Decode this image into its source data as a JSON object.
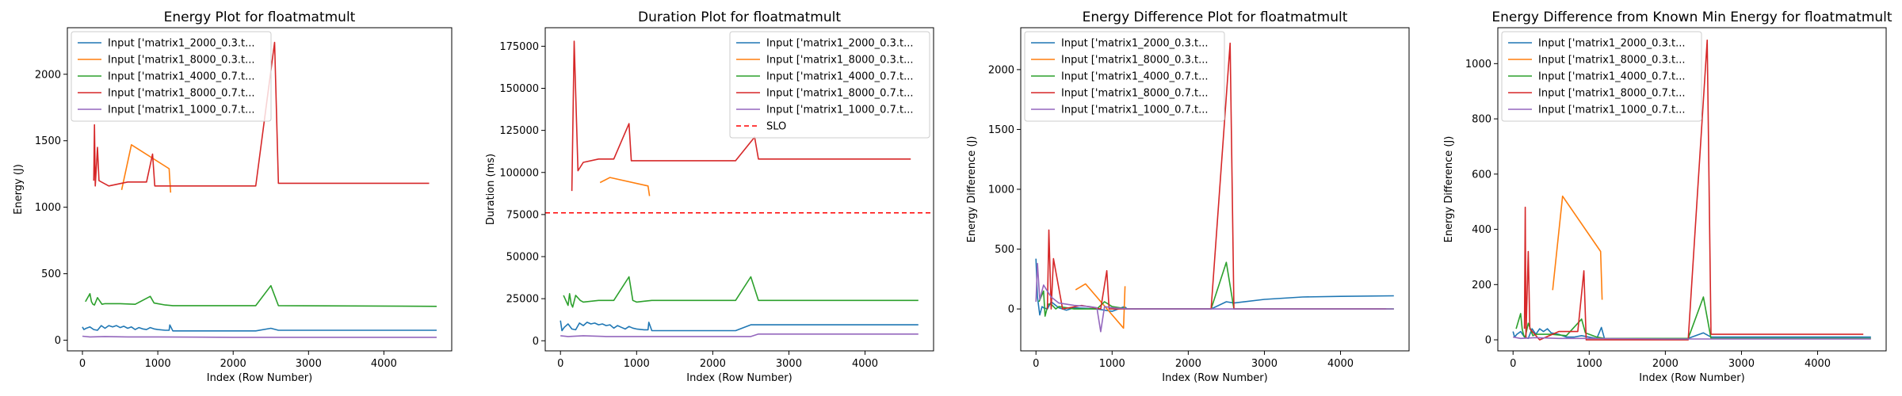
{
  "chart_data": [
    {
      "type": "line",
      "title": "Energy Plot for floatmatmult",
      "xlabel": "Index (Row Number)",
      "ylabel": "Energy (J)",
      "xlim": [
        -200,
        4900
      ],
      "ylim": [
        -80,
        2350
      ],
      "xticks": [
        0,
        1000,
        2000,
        3000,
        4000
      ],
      "yticks": [
        0,
        500,
        1000,
        1500,
        2000
      ],
      "legend": "upper-left",
      "series": [
        {
          "name": "Input ['matrix1_2000_0.3.t...",
          "color": "#1f77b4",
          "x": [
            0,
            20,
            50,
            100,
            150,
            200,
            250,
            300,
            350,
            400,
            450,
            500,
            550,
            600,
            650,
            700,
            750,
            800,
            850,
            900,
            950,
            1000,
            1100,
            1150,
            1160,
            1200,
            2000,
            2300,
            2500,
            2600,
            4700
          ],
          "y": [
            100,
            80,
            90,
            100,
            80,
            75,
            110,
            90,
            110,
            100,
            110,
            95,
            105,
            90,
            100,
            80,
            95,
            85,
            80,
            95,
            85,
            80,
            75,
            75,
            115,
            70,
            70,
            70,
            90,
            75,
            75
          ]
        },
        {
          "name": "Input ['matrix1_8000_0.3.t...",
          "color": "#ff7f0e",
          "x": [
            520,
            650,
            1150,
            1170
          ],
          "y": [
            1130,
            1470,
            1290,
            1110
          ]
        },
        {
          "name": "Input ['matrix1_4000_0.7.t...",
          "color": "#2ca02c",
          "x": [
            40,
            100,
            120,
            140,
            160,
            200,
            260,
            300,
            500,
            700,
            900,
            950,
            1000,
            1100,
            1200,
            2000,
            2300,
            2500,
            2600,
            4700
          ],
          "y": [
            290,
            350,
            290,
            270,
            265,
            320,
            270,
            275,
            275,
            270,
            330,
            280,
            275,
            265,
            260,
            260,
            260,
            410,
            260,
            255
          ]
        },
        {
          "name": "Input ['matrix1_8000_0.7.t...",
          "color": "#d62728",
          "x": [
            150,
            160,
            170,
            200,
            220,
            350,
            600,
            850,
            930,
            960,
            2300,
            2550,
            2600,
            4600
          ],
          "y": [
            1200,
            1620,
            1160,
            1450,
            1200,
            1160,
            1190,
            1190,
            1400,
            1160,
            1160,
            2240,
            1180,
            1180
          ]
        },
        {
          "name": "Input ['matrix1_1000_0.7.t...",
          "color": "#9467bd",
          "x": [
            0,
            100,
            300,
            600,
            1000,
            2000,
            3000,
            4700
          ],
          "y": [
            30,
            25,
            28,
            25,
            25,
            22,
            22,
            22
          ]
        }
      ]
    },
    {
      "type": "line",
      "title": "Duration Plot for floatmatmult",
      "xlabel": "Index (Row Number)",
      "ylabel": "Duration (ms)",
      "xlim": [
        -200,
        4900
      ],
      "ylim": [
        -6000,
        186000
      ],
      "xticks": [
        0,
        1000,
        2000,
        3000,
        4000
      ],
      "yticks": [
        0,
        25000,
        50000,
        75000,
        100000,
        125000,
        150000,
        175000
      ],
      "legend": "upper-right",
      "slo": {
        "label": "SLO",
        "value": 76000,
        "color": "#ff0000"
      },
      "series": [
        {
          "name": "Input ['matrix1_2000_0.3.t...",
          "color": "#1f77b4",
          "x": [
            0,
            20,
            50,
            100,
            150,
            200,
            250,
            300,
            350,
            400,
            450,
            500,
            550,
            600,
            650,
            700,
            750,
            800,
            850,
            900,
            950,
            1000,
            1100,
            1150,
            1160,
            1200,
            2000,
            2300,
            2500,
            2600,
            4700
          ],
          "y": [
            12000,
            6000,
            8000,
            10000,
            7000,
            6500,
            10500,
            9000,
            11000,
            10000,
            10500,
            9500,
            10000,
            9000,
            9500,
            7500,
            9000,
            8000,
            7000,
            8500,
            7500,
            7000,
            6500,
            6500,
            11000,
            6000,
            6000,
            6000,
            9500,
            9500,
            9500
          ]
        },
        {
          "name": "Input ['matrix1_8000_0.3.t...",
          "color": "#ff7f0e",
          "x": [
            520,
            650,
            1150,
            1170
          ],
          "y": [
            94000,
            97000,
            92000,
            86000
          ]
        },
        {
          "name": "Input ['matrix1_4000_0.7.t...",
          "color": "#2ca02c",
          "x": [
            40,
            100,
            120,
            140,
            160,
            200,
            260,
            300,
            500,
            700,
            900,
            950,
            1000,
            1100,
            1200,
            2000,
            2300,
            2500,
            2600,
            4700
          ],
          "y": [
            27000,
            21000,
            28000,
            22000,
            20000,
            27000,
            24000,
            23000,
            24000,
            24000,
            38000,
            24000,
            23000,
            23500,
            24000,
            24000,
            24000,
            38000,
            24000,
            24000
          ]
        },
        {
          "name": "Input ['matrix1_8000_0.7.t...",
          "color": "#d62728",
          "x": [
            150,
            180,
            230,
            300,
            500,
            700,
            900,
            930,
            1200,
            2300,
            2550,
            2600,
            4600
          ],
          "y": [
            89000,
            178000,
            101000,
            106000,
            108000,
            108000,
            129000,
            107000,
            107000,
            107000,
            121000,
            108000,
            108000
          ]
        },
        {
          "name": "Input ['matrix1_1000_0.7.t...",
          "color": "#9467bd",
          "x": [
            0,
            100,
            300,
            600,
            1000,
            2500,
            2600,
            4700
          ],
          "y": [
            3000,
            2500,
            3000,
            2500,
            2500,
            2500,
            4000,
            4000
          ]
        }
      ]
    },
    {
      "type": "line",
      "title": "Energy Difference Plot for floatmatmult",
      "xlabel": "Index (Row Number)",
      "ylabel": "Energy Difference (J)",
      "xlim": [
        -200,
        4900
      ],
      "ylim": [
        -350,
        2350
      ],
      "xticks": [
        0,
        1000,
        2000,
        3000,
        4000
      ],
      "yticks": [
        0,
        500,
        1000,
        1500,
        2000
      ],
      "legend": "upper-left",
      "series": [
        {
          "name": "Input ['matrix1_2000_0.3.t...",
          "color": "#1f77b4",
          "x": [
            0,
            20,
            50,
            80,
            100,
            150,
            200,
            300,
            400,
            500,
            800,
            1000,
            1160,
            1200,
            2300,
            2500,
            2600,
            3000,
            3500,
            4000,
            4700
          ],
          "y": [
            420,
            100,
            -50,
            20,
            10,
            0,
            60,
            10,
            -10,
            10,
            0,
            -20,
            20,
            0,
            0,
            60,
            50,
            80,
            100,
            105,
            110
          ]
        },
        {
          "name": "Input ['matrix1_8000_0.3.t...",
          "color": "#ff7f0e",
          "x": [
            520,
            650,
            1150,
            1170
          ],
          "y": [
            160,
            210,
            -160,
            190
          ]
        },
        {
          "name": "Input ['matrix1_4000_0.7.t...",
          "color": "#2ca02c",
          "x": [
            40,
            100,
            120,
            160,
            200,
            260,
            300,
            500,
            800,
            900,
            1000,
            1200,
            2300,
            2500,
            2600,
            4700
          ],
          "y": [
            60,
            150,
            -60,
            40,
            40,
            0,
            20,
            0,
            0,
            60,
            20,
            0,
            0,
            390,
            0,
            0
          ]
        },
        {
          "name": "Input ['matrix1_8000_0.7.t...",
          "color": "#d62728",
          "x": [
            150,
            170,
            200,
            230,
            350,
            600,
            850,
            930,
            960,
            2300,
            2550,
            2600,
            4600
          ],
          "y": [
            0,
            660,
            0,
            420,
            0,
            30,
            0,
            320,
            0,
            0,
            2220,
            0,
            0
          ]
        },
        {
          "name": "Input ['matrix1_1000_0.7.t...",
          "color": "#9467bd",
          "x": [
            0,
            20,
            50,
            100,
            200,
            300,
            500,
            700,
            800,
            850,
            900,
            1000,
            1200,
            2000,
            4700
          ],
          "y": [
            60,
            380,
            80,
            200,
            100,
            50,
            30,
            20,
            10,
            -190,
            20,
            10,
            0,
            0,
            0
          ]
        }
      ]
    },
    {
      "type": "line",
      "title": "Energy Difference from Known Min Energy for floatmatmult",
      "xlabel": "Index (Row Number)",
      "ylabel": "Energy Difference (J)",
      "xlim": [
        -200,
        4900
      ],
      "ylim": [
        -40,
        1130
      ],
      "xticks": [
        0,
        1000,
        2000,
        3000,
        4000
      ],
      "yticks": [
        0,
        200,
        400,
        600,
        800,
        1000
      ],
      "legend": "upper-left",
      "series": [
        {
          "name": "Input ['matrix1_2000_0.3.t...",
          "color": "#1f77b4",
          "x": [
            0,
            20,
            50,
            100,
            150,
            200,
            250,
            300,
            350,
            400,
            450,
            500,
            600,
            700,
            800,
            900,
            1000,
            1100,
            1160,
            1200,
            2300,
            2500,
            2600,
            4700
          ],
          "y": [
            30,
            10,
            20,
            30,
            10,
            5,
            40,
            20,
            40,
            30,
            40,
            25,
            20,
            10,
            10,
            15,
            10,
            5,
            45,
            5,
            5,
            25,
            10,
            10
          ]
        },
        {
          "name": "Input ['matrix1_8000_0.3.t...",
          "color": "#ff7f0e",
          "x": [
            520,
            650,
            1150,
            1170
          ],
          "y": [
            180,
            520,
            320,
            145
          ]
        },
        {
          "name": "Input ['matrix1_4000_0.7.t...",
          "color": "#2ca02c",
          "x": [
            40,
            100,
            120,
            140,
            160,
            200,
            260,
            300,
            500,
            700,
            900,
            950,
            1000,
            1100,
            1200,
            2300,
            2500,
            2600,
            4700
          ],
          "y": [
            40,
            95,
            40,
            15,
            10,
            60,
            15,
            20,
            20,
            15,
            75,
            25,
            20,
            10,
            5,
            5,
            155,
            5,
            5
          ]
        },
        {
          "name": "Input ['matrix1_8000_0.7.t...",
          "color": "#d62728",
          "x": [
            150,
            160,
            170,
            200,
            220,
            350,
            600,
            850,
            930,
            960,
            2300,
            2550,
            2600,
            4600
          ],
          "y": [
            40,
            480,
            10,
            320,
            40,
            0,
            30,
            30,
            250,
            0,
            0,
            1085,
            20,
            20
          ]
        },
        {
          "name": "Input ['matrix1_1000_0.7.t...",
          "color": "#9467bd",
          "x": [
            0,
            100,
            300,
            600,
            1000,
            2000,
            3000,
            4700
          ],
          "y": [
            10,
            5,
            8,
            5,
            5,
            3,
            3,
            3
          ]
        }
      ]
    }
  ]
}
